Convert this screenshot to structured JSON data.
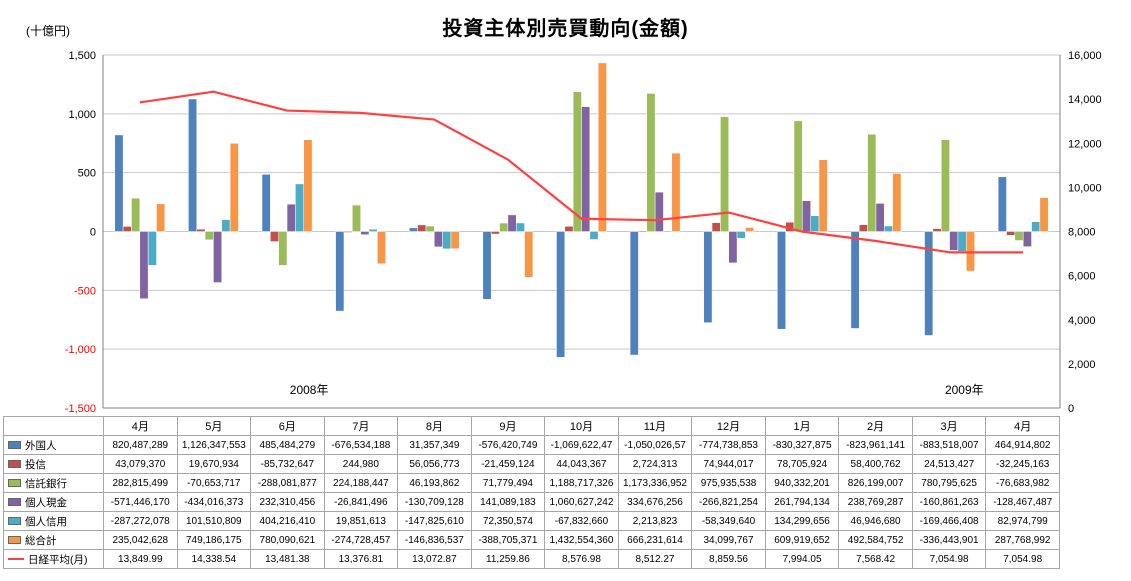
{
  "title": "投資主体別売買動向(金額)",
  "left_axis_unit": "(十億円)",
  "chart_data": {
    "type": "combo-bar-line",
    "title": "投資主体別売買動向(金額)",
    "ylabel_left": "(十億円)",
    "categories": [
      "4月",
      "5月",
      "6月",
      "7月",
      "8月",
      "9月",
      "10月",
      "11月",
      "12月",
      "1月",
      "2月",
      "3月",
      "4月"
    ],
    "year_labels": [
      {
        "label": "2008年",
        "slot": 2.8
      },
      {
        "label": "2009年",
        "slot": 11.7
      }
    ],
    "left_axis": {
      "min": -1500,
      "max": 1500,
      "step": 500,
      "negative_tick_color": "#FF0000"
    },
    "right_axis": {
      "min": 0,
      "max": 16000,
      "step": 2000
    },
    "grid": true,
    "legend_position": "table-left-column",
    "bar_series": [
      {
        "name": "外国人",
        "color": "#4F81BD",
        "values": [
          820.5,
          1126.3,
          485.5,
          -676.5,
          31.4,
          -576.4,
          -1069.6,
          -1050.0,
          -774.7,
          -830.3,
          -824.0,
          -883.5,
          464.9
        ]
      },
      {
        "name": "投信",
        "color": "#C0504D",
        "values": [
          43.1,
          19.7,
          -85.7,
          0.2,
          56.1,
          -21.5,
          44.0,
          2.7,
          74.9,
          78.7,
          58.4,
          24.5,
          -32.2
        ]
      },
      {
        "name": "信託銀行",
        "color": "#9BBB59",
        "values": [
          282.8,
          -70.7,
          -288.1,
          224.2,
          46.2,
          71.8,
          1188.7,
          1173.3,
          975.9,
          940.3,
          826.2,
          780.8,
          -76.7
        ]
      },
      {
        "name": "個人現金",
        "color": "#8064A2",
        "values": [
          -571.4,
          -434.0,
          232.3,
          -26.8,
          -130.7,
          141.1,
          1060.6,
          334.7,
          -266.8,
          261.8,
          238.8,
          -160.9,
          -128.5
        ]
      },
      {
        "name": "個人信用",
        "color": "#4BACC6",
        "values": [
          -287.3,
          101.5,
          404.2,
          19.9,
          -147.8,
          72.4,
          -67.8,
          2.2,
          -58.3,
          134.3,
          46.9,
          -169.5,
          83.0
        ]
      },
      {
        "name": "総合計",
        "color": "#F79646",
        "values": [
          235.0,
          749.2,
          780.1,
          -274.7,
          -146.8,
          -388.7,
          1432.6,
          666.2,
          34.1,
          609.9,
          492.6,
          -336.4,
          287.8
        ]
      }
    ],
    "line_series": {
      "name": "日経平均(月)",
      "color": "#FF4040",
      "axis": "right",
      "values": [
        13849.99,
        14338.54,
        13481.38,
        13376.81,
        13072.87,
        11259.86,
        8576.98,
        8512.27,
        8859.56,
        7994.05,
        7568.42,
        7054.98,
        7054.98
      ]
    }
  },
  "table": {
    "corner": "",
    "col_headers": [
      "4月",
      "5月",
      "6月",
      "7月",
      "8月",
      "9月",
      "10月",
      "11月",
      "12月",
      "1月",
      "2月",
      "3月",
      "4月"
    ],
    "rows": [
      {
        "name": "外国人",
        "swatch": "#4F81BD",
        "swatch_type": "bar",
        "cells": [
          "820,487,289",
          "1,126,347,553",
          "485,484,279",
          "-676,534,188",
          "31,357,349",
          "-576,420,749",
          "-1,069,622,47",
          "-1,050,026,57",
          "-774,738,853",
          "-830,327,875",
          "-823,961,141",
          "-883,518,007",
          "464,914,802"
        ]
      },
      {
        "name": "投信",
        "swatch": "#C0504D",
        "swatch_type": "bar",
        "cells": [
          "43,079,370",
          "19,670,934",
          "-85,732,647",
          "244,980",
          "56,056,773",
          "-21,459,124",
          "44,043,367",
          "2,724,313",
          "74,944,017",
          "78,705,924",
          "58,400,762",
          "24,513,427",
          "-32,245,163"
        ]
      },
      {
        "name": "信託銀行",
        "swatch": "#9BBB59",
        "swatch_type": "bar",
        "cells": [
          "282,815,499",
          "-70,653,717",
          "-288,081,877",
          "224,188,447",
          "46,193,862",
          "71,779,494",
          "1,188,717,326",
          "1,173,336,952",
          "975,935,538",
          "940,332,201",
          "826,199,007",
          "780,795,625",
          "-76,683,982"
        ]
      },
      {
        "name": "個人現金",
        "swatch": "#8064A2",
        "swatch_type": "bar",
        "cells": [
          "-571,446,170",
          "-434,016,373",
          "232,310,456",
          "-26,841,496",
          "-130,709,128",
          "141,089,183",
          "1,060,627,242",
          "334,676,256",
          "-266,821,254",
          "261,794,134",
          "238,769,287",
          "-160,861,263",
          "-128,467,487"
        ]
      },
      {
        "name": "個人信用",
        "swatch": "#4BACC6",
        "swatch_type": "bar",
        "cells": [
          "-287,272,078",
          "101,510,809",
          "404,216,410",
          "19,851,613",
          "-147,825,610",
          "72,350,574",
          "-67,832,660",
          "2,213,823",
          "-58,349,640",
          "134,299,656",
          "46,946,680",
          "-169,466,408",
          "82,974,799"
        ]
      },
      {
        "name": "総合計",
        "swatch": "#F79646",
        "swatch_type": "bar",
        "cells": [
          "235,042,628",
          "749,186,175",
          "780,090,621",
          "-274,728,457",
          "-146,836,537",
          "-388,705,371",
          "1,432,554,360",
          "666,231,614",
          "34,099,767",
          "609,919,652",
          "492,584,752",
          "-336,443,901",
          "287,768,992"
        ]
      },
      {
        "name": "日経平均(月)",
        "swatch": "#FF4040",
        "swatch_type": "line",
        "cells": [
          "13,849.99",
          "14,338.54",
          "13,481.38",
          "13,376.81",
          "13,072.87",
          "11,259.86",
          "8,576.98",
          "8,512.27",
          "8,859.56",
          "7,994.05",
          "7,568.42",
          "7,054.98",
          "7,054.98"
        ]
      }
    ]
  }
}
